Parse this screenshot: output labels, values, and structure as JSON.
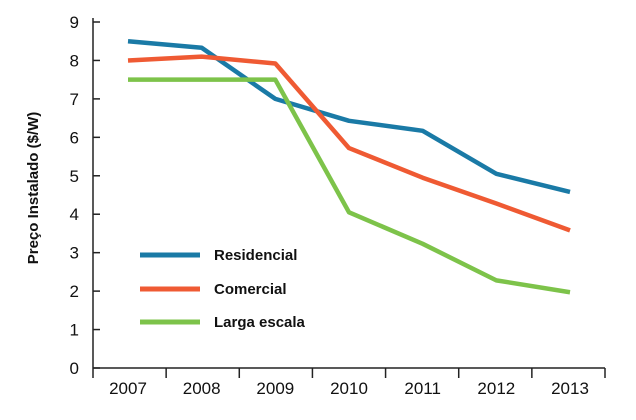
{
  "chart_data": {
    "type": "line",
    "title": "",
    "xlabel": "",
    "ylabel": "Preço Instalado  ($/W)",
    "x": [
      "2007",
      "2008",
      "2009",
      "2010",
      "2011",
      "2012",
      "2013"
    ],
    "yticks": [
      "0",
      "1",
      "2",
      "3",
      "4",
      "5",
      "6",
      "7",
      "8",
      "9"
    ],
    "ylim": [
      0,
      9
    ],
    "grid": false,
    "legend_position": "bottom-left",
    "series": [
      {
        "name": "Residencial",
        "color": "#1a7aa6",
        "values": [
          8.5,
          8.33,
          7.0,
          6.43,
          6.17,
          5.05,
          4.58
        ]
      },
      {
        "name": "Comercial",
        "color": "#ef5a33",
        "values": [
          8.0,
          8.1,
          7.92,
          5.72,
          4.95,
          4.28,
          3.58
        ]
      },
      {
        "name": "Larga escala",
        "color": "#7dc34a",
        "values": [
          7.5,
          7.5,
          7.5,
          4.05,
          3.23,
          2.28,
          1.97
        ]
      }
    ]
  }
}
